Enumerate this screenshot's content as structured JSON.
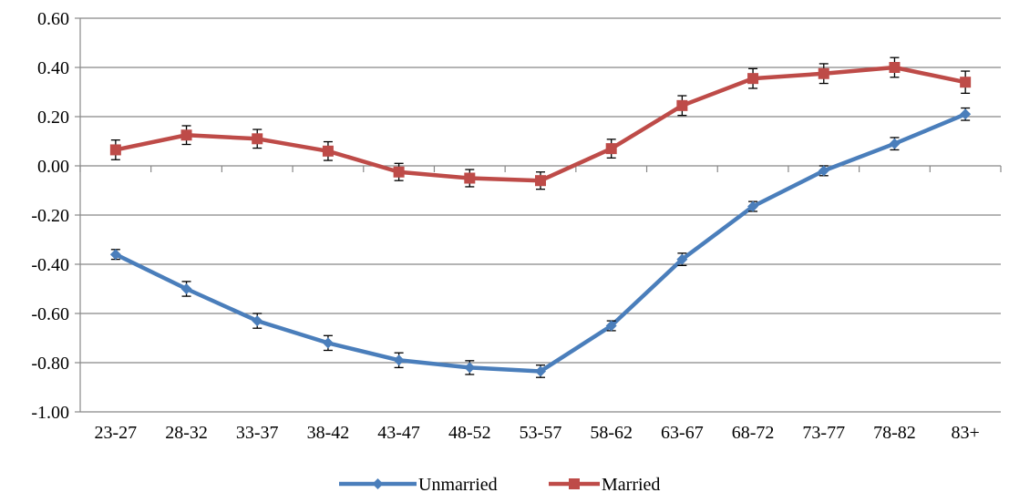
{
  "chart_data": {
    "type": "line",
    "categories": [
      "23-27",
      "28-32",
      "33-37",
      "38-42",
      "43-47",
      "48-52",
      "53-57",
      "58-62",
      "63-67",
      "68-72",
      "73-77",
      "78-82",
      "83+"
    ],
    "ylim": [
      -1.0,
      0.6
    ],
    "yticks": [
      0.6,
      0.4,
      0.2,
      0.0,
      -0.2,
      -0.4,
      -0.6,
      -0.8,
      -1.0
    ],
    "ytick_labels": [
      "0.60",
      "0.40",
      "0.20",
      "0.00",
      "-0.20",
      "-0.40",
      "-0.60",
      "-0.80",
      "-1.00"
    ],
    "grid": true,
    "legend_position": "bottom",
    "series": [
      {
        "name": "Unmarried",
        "color": "#4A7EBB",
        "marker": "diamond",
        "values": [
          -0.36,
          -0.5,
          -0.63,
          -0.72,
          -0.79,
          -0.82,
          -0.835,
          -0.65,
          -0.38,
          -0.165,
          -0.02,
          0.09,
          0.21
        ],
        "error": [
          0.02,
          0.03,
          0.03,
          0.03,
          0.03,
          0.028,
          0.025,
          0.02,
          0.025,
          0.02,
          0.02,
          0.025,
          0.025
        ]
      },
      {
        "name": "Married",
        "color": "#BE4B48",
        "marker": "square",
        "values": [
          0.065,
          0.125,
          0.11,
          0.06,
          -0.025,
          -0.05,
          -0.06,
          0.07,
          0.245,
          0.355,
          0.375,
          0.4,
          0.34
        ],
        "error": [
          0.04,
          0.038,
          0.038,
          0.038,
          0.035,
          0.035,
          0.035,
          0.038,
          0.04,
          0.04,
          0.04,
          0.04,
          0.045
        ]
      }
    ]
  }
}
